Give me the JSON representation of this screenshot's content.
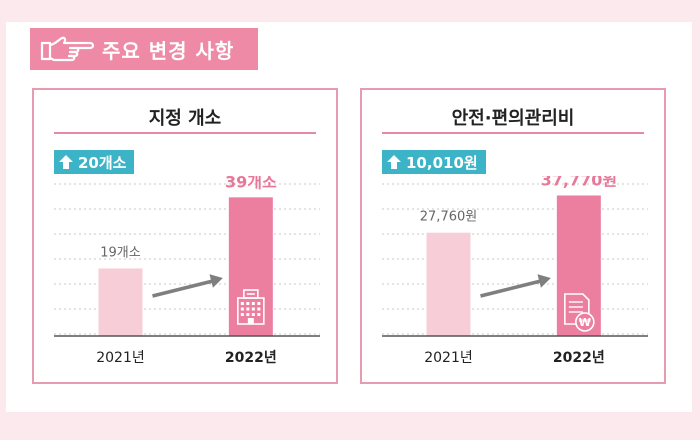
{
  "header": {
    "title": "주요 변경 사항",
    "icon": "pointing-hand-icon"
  },
  "colors": {
    "accent": "#ee8aa6",
    "bar_2021": "#f7cdd8",
    "bar_2022": "#ec7f9f",
    "badge": "#3db3c8",
    "arrow": "#7f7f7f"
  },
  "chart_data": [
    {
      "type": "bar",
      "title": "지정 개소",
      "categories": [
        "2021년",
        "2022년"
      ],
      "values": [
        19,
        39
      ],
      "value_labels": [
        "19개소",
        "39개소"
      ],
      "change_label": "20개소",
      "ylim": [
        0,
        45
      ],
      "grid": true,
      "icon": "building-icon"
    },
    {
      "type": "bar",
      "title": "안전·편의관리비",
      "categories": [
        "2021년",
        "2022년"
      ],
      "values": [
        27760,
        37770
      ],
      "value_labels": [
        "27,760원",
        "37,770원"
      ],
      "change_label": "10,010원",
      "ylim": [
        0,
        43000
      ],
      "grid": true,
      "icon": "document-won-icon"
    }
  ]
}
